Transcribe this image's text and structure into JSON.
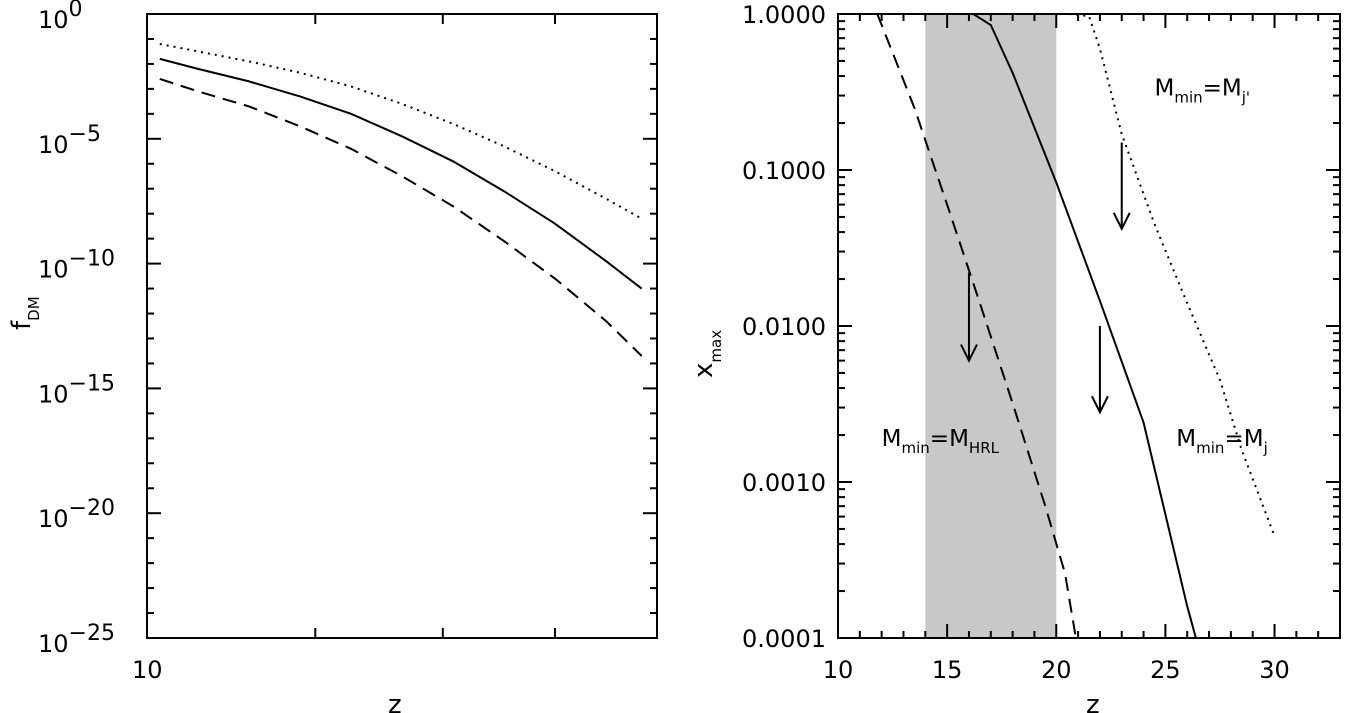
{
  "chart_data": [
    {
      "type": "line",
      "xlabel": "z",
      "ylabel": "f",
      "ylabel_sub": "DM",
      "yscale": "log",
      "ylim_exp": [
        -25,
        0
      ],
      "xlim": [
        10,
        30
      ],
      "x_tick_labels": [
        "10"
      ],
      "y_tick_base": "10",
      "y_tick_exponents": [
        "0",
        "−5",
        "−10",
        "−15",
        "−20",
        "−25"
      ],
      "y_tick_values_exp": [
        0,
        -5,
        -10,
        -15,
        -20,
        -25
      ],
      "series": [
        {
          "style": "dotted",
          "x": [
            10.5,
            12,
            14,
            16,
            18,
            20,
            22,
            24,
            26,
            28,
            29.4
          ],
          "log10y": [
            -1.2,
            -1.5,
            -1.9,
            -2.35,
            -2.9,
            -3.6,
            -4.4,
            -5.3,
            -6.3,
            -7.4,
            -8.2
          ]
        },
        {
          "style": "solid",
          "x": [
            10.5,
            12,
            14,
            16,
            18,
            20,
            22,
            24,
            26,
            28,
            29.4
          ],
          "log10y": [
            -1.8,
            -2.2,
            -2.7,
            -3.3,
            -4.0,
            -4.9,
            -5.9,
            -7.1,
            -8.4,
            -9.9,
            -11.0
          ]
        },
        {
          "style": "dashed",
          "x": [
            10.5,
            12,
            14,
            16,
            18,
            20,
            22,
            24,
            26,
            28,
            29.4
          ],
          "log10y": [
            -2.6,
            -3.1,
            -3.7,
            -4.5,
            -5.4,
            -6.5,
            -7.7,
            -9.1,
            -10.6,
            -12.3,
            -13.7
          ]
        }
      ]
    },
    {
      "type": "line",
      "xlabel": "z",
      "ylabel": "x",
      "ylabel_sub": "max",
      "yscale": "log",
      "xlim": [
        10,
        33
      ],
      "ylim": [
        0.0001,
        1.0
      ],
      "x_tick_labels": [
        "10",
        "15",
        "20",
        "25",
        "30"
      ],
      "x_tick_values": [
        10,
        15,
        20,
        25,
        30
      ],
      "y_tick_labels": [
        "1.0000",
        "0.1000",
        "0.0100",
        "0.0010",
        "0.0001"
      ],
      "y_tick_values": [
        1.0,
        0.1,
        0.01,
        0.001,
        0.0001
      ],
      "shaded_band": {
        "x": [
          14,
          20
        ],
        "color": "#c8c8c8"
      },
      "series": [
        {
          "style": "dashed",
          "x": [
            11.8,
            13.5,
            15.0,
            16.5,
            18.0,
            19.5,
            20.4,
            20.9
          ],
          "y": [
            1.0,
            0.25,
            0.06,
            0.014,
            0.0032,
            0.0007,
            0.00026,
            0.0001
          ]
        },
        {
          "style": "solid",
          "x": [
            16.2,
            17.0,
            18.0,
            20.0,
            22.0,
            24.0,
            26.0,
            26.4
          ],
          "y": [
            1.0,
            0.85,
            0.42,
            0.083,
            0.0145,
            0.0024,
            0.00016,
            0.0001
          ]
        },
        {
          "style": "dotted",
          "x": [
            20.6,
            21.5,
            22.0,
            23.0,
            24.5,
            26.0,
            27.5,
            28.5,
            30.0
          ],
          "y": [
            1.0,
            0.97,
            0.6,
            0.17,
            0.045,
            0.014,
            0.0045,
            0.0016,
            0.00045
          ]
        }
      ],
      "annotations": [
        {
          "main": "M",
          "sub1": "min",
          "eq": "=M",
          "sub2": "j'",
          "x": 24.5,
          "y": 0.3
        },
        {
          "main": "M",
          "sub1": "min",
          "eq": "=M",
          "sub2": "HRL",
          "x": 12.0,
          "y": 0.0017
        },
        {
          "main": "M",
          "sub1": "min",
          "eq": "=M",
          "sub2": "j",
          "x": 25.5,
          "y": 0.0017
        }
      ],
      "arrows": [
        {
          "x": 23.0,
          "y_from": 0.15,
          "y_to": 0.042
        },
        {
          "x": 16.0,
          "y_from": 0.022,
          "y_to": 0.006
        },
        {
          "x": 22.0,
          "y_from": 0.01,
          "y_to": 0.0028
        }
      ]
    }
  ]
}
